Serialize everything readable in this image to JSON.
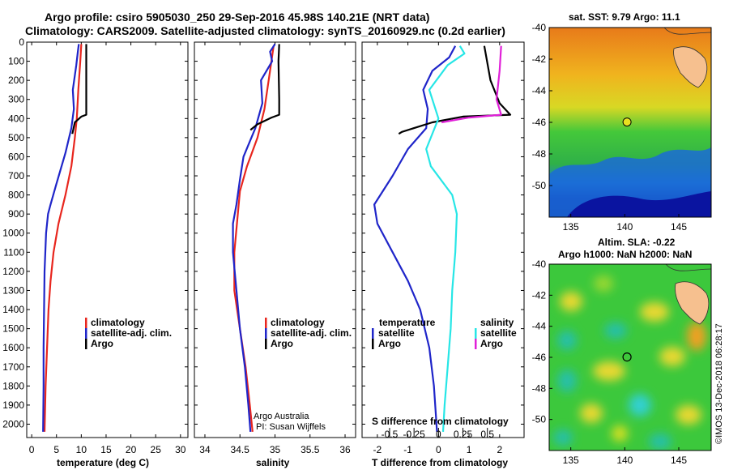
{
  "title": {
    "line1": "Argo profile: csiro 5905030_250 29-Sep-2016 45.98S 140.21E (NRT data)",
    "line2": "Climatology: CARS2009. Satellite-adjusted climatology: synTS_20160929.nc (0.2d earlier)"
  },
  "colors": {
    "climatology": "#e8261e",
    "satellite": "#1f25c9",
    "argo": "#000000",
    "sal_satellite": "#27e6e6",
    "sal_argo": "#e020d8"
  },
  "credit": {
    "line1": "Argo Australia",
    "line2": "PI: Susan Wijffels"
  },
  "watermark": "©IMOS 13-Dec-2018 06:28:17",
  "chart_data": [
    {
      "type": "line",
      "xlabel": "temperature (deg C)",
      "xlim": [
        -1,
        31.5
      ],
      "ylim": [
        2070,
        0
      ],
      "xticks": [
        0,
        5,
        10,
        15,
        20,
        25,
        30
      ],
      "yticks": [
        0,
        100,
        200,
        300,
        400,
        500,
        600,
        700,
        800,
        900,
        1000,
        1100,
        1200,
        1300,
        1400,
        1500,
        1600,
        1700,
        1800,
        1900,
        2000
      ],
      "ytick_labels": [
        "0",
        "100",
        "200",
        "300",
        "400",
        "500",
        "600",
        "700",
        "800",
        "900",
        "1000",
        "1100",
        "1200",
        "1300",
        "1400",
        "1500",
        "1600",
        "1700",
        "1800",
        "1900",
        "2000"
      ],
      "legend": [
        "climatology",
        "satellite-adj. clim.",
        "Argo"
      ],
      "legend_position": "lower-right",
      "series": [
        {
          "name": "climatology",
          "color": "#e8261e",
          "points": [
            [
              10.0,
              10
            ],
            [
              9.8,
              100
            ],
            [
              9.4,
              250
            ],
            [
              9.1,
              400
            ],
            [
              8.7,
              500
            ],
            [
              8.0,
              650
            ],
            [
              6.8,
              800
            ],
            [
              5.4,
              950
            ],
            [
              4.4,
              1100
            ],
            [
              3.8,
              1250
            ],
            [
              3.4,
              1400
            ],
            [
              3.1,
              1600
            ],
            [
              2.8,
              1800
            ],
            [
              2.6,
              2040
            ]
          ]
        },
        {
          "name": "satellite-adj. clim.",
          "color": "#1f25c9",
          "points": [
            [
              9.5,
              10
            ],
            [
              9.3,
              50
            ],
            [
              9.0,
              120
            ],
            [
              8.3,
              250
            ],
            [
              8.5,
              350
            ],
            [
              8.0,
              450
            ],
            [
              6.8,
              580
            ],
            [
              4.9,
              750
            ],
            [
              3.8,
              850
            ],
            [
              3.3,
              900
            ],
            [
              2.9,
              1000
            ],
            [
              2.6,
              1200
            ],
            [
              2.5,
              1400
            ],
            [
              2.4,
              1600
            ],
            [
              2.4,
              1800
            ],
            [
              2.3,
              2040
            ]
          ]
        },
        {
          "name": "Argo",
          "color": "#000000",
          "points": [
            [
              11.0,
              10
            ],
            [
              11.0,
              380
            ],
            [
              10.0,
              390
            ],
            [
              8.7,
              420
            ],
            [
              8.2,
              480
            ]
          ]
        }
      ]
    },
    {
      "type": "line",
      "xlabel": "salinity",
      "xlim": [
        33.85,
        36.15
      ],
      "ylim": [
        2070,
        0
      ],
      "xticks": [
        34,
        34.5,
        35,
        35.5,
        36
      ],
      "legend": [
        "climatology",
        "satellite-adj. clim.",
        "Argo"
      ],
      "legend_position": "lower-right",
      "series": [
        {
          "name": "climatology",
          "color": "#e8261e",
          "points": [
            [
              34.98,
              20
            ],
            [
              34.93,
              150
            ],
            [
              34.85,
              350
            ],
            [
              34.75,
              500
            ],
            [
              34.6,
              650
            ],
            [
              34.5,
              780
            ],
            [
              34.47,
              900
            ],
            [
              34.42,
              1100
            ],
            [
              34.42,
              1300
            ],
            [
              34.5,
              1500
            ],
            [
              34.58,
              1700
            ],
            [
              34.64,
              1900
            ],
            [
              34.68,
              2040
            ]
          ]
        },
        {
          "name": "satellite-adj. clim.",
          "color": "#1f25c9",
          "points": [
            [
              35.0,
              10
            ],
            [
              34.93,
              50
            ],
            [
              34.96,
              100
            ],
            [
              34.8,
              200
            ],
            [
              34.82,
              320
            ],
            [
              34.72,
              450
            ],
            [
              34.55,
              600
            ],
            [
              34.5,
              720
            ],
            [
              34.45,
              850
            ],
            [
              34.4,
              950
            ],
            [
              34.4,
              1100
            ],
            [
              34.45,
              1300
            ],
            [
              34.5,
              1500
            ],
            [
              34.57,
              1700
            ],
            [
              34.62,
              1900
            ],
            [
              34.65,
              2040
            ]
          ]
        },
        {
          "name": "Argo",
          "color": "#000000",
          "points": [
            [
              35.06,
              10
            ],
            [
              35.05,
              100
            ],
            [
              35.06,
              300
            ],
            [
              35.06,
              380
            ],
            [
              34.95,
              395
            ],
            [
              34.75,
              430
            ],
            [
              34.65,
              460
            ]
          ]
        }
      ]
    },
    {
      "type": "line",
      "title": "",
      "xlabel": "T difference from climatology",
      "xlabel_top": "S difference from climatology",
      "xlim": [
        -2.5,
        2.8
      ],
      "ylim": [
        2070,
        0
      ],
      "xticks": [
        -2,
        -1,
        0,
        1,
        2
      ],
      "xticks_top": [
        "-0.5",
        "-0.25",
        "0",
        "0.25",
        "0.5"
      ],
      "legend_temperature": {
        "heading": "temperature",
        "items": [
          "satellite",
          "Argo"
        ]
      },
      "legend_salinity": {
        "heading": "salinity",
        "items": [
          "satellite",
          "Argo"
        ]
      },
      "series": [
        {
          "name": "temperature satellite",
          "color": "#1f25c9",
          "points": [
            [
              0.55,
              20
            ],
            [
              0.35,
              80
            ],
            [
              -0.2,
              150
            ],
            [
              -0.5,
              250
            ],
            [
              -0.35,
              350
            ],
            [
              -0.4,
              450
            ],
            [
              -1.0,
              560
            ],
            [
              -1.5,
              700
            ],
            [
              -2.1,
              850
            ],
            [
              -2.0,
              950
            ],
            [
              -1.5,
              1100
            ],
            [
              -1.0,
              1250
            ],
            [
              -0.6,
              1400
            ],
            [
              -0.3,
              1600
            ],
            [
              -0.15,
              1800
            ],
            [
              -0.05,
              2040
            ]
          ]
        },
        {
          "name": "temperature Argo",
          "color": "#000000",
          "points": [
            [
              1.5,
              20
            ],
            [
              1.7,
              200
            ],
            [
              2.0,
              320
            ],
            [
              2.35,
              380
            ],
            [
              0.8,
              390
            ],
            [
              -0.2,
              420
            ],
            [
              -1.2,
              470
            ],
            [
              -1.3,
              480
            ]
          ]
        },
        {
          "name": "salinity satellite",
          "color": "#27e6e6",
          "points": [
            [
              0.7,
              20
            ],
            [
              0.85,
              60
            ],
            [
              0.3,
              120
            ],
            [
              -0.3,
              250
            ],
            [
              0.0,
              400
            ],
            [
              -0.4,
              560
            ],
            [
              -0.25,
              650
            ],
            [
              0.45,
              800
            ],
            [
              0.6,
              900
            ],
            [
              0.55,
              1100
            ],
            [
              0.45,
              1300
            ],
            [
              0.4,
              1500
            ],
            [
              0.3,
              1700
            ],
            [
              0.2,
              1900
            ],
            [
              0.15,
              2040
            ]
          ]
        },
        {
          "name": "salinity Argo",
          "color": "#e020d8",
          "points": [
            [
              2.05,
              20
            ],
            [
              2.0,
              150
            ],
            [
              1.9,
              300
            ],
            [
              2.05,
              380
            ],
            [
              1.0,
              395
            ],
            [
              0.1,
              420
            ]
          ]
        }
      ]
    },
    {
      "type": "heatmap",
      "title": "sat. SST: 9.79 Argo: 11.1",
      "xlim": [
        133,
        148
      ],
      "ylim": [
        -52,
        -40
      ],
      "xticks": [
        135,
        140,
        145
      ],
      "yticks": [
        -40,
        -42,
        -44,
        -46,
        -48,
        -50
      ],
      "float_position": [
        140.21,
        -45.98
      ]
    },
    {
      "type": "heatmap",
      "title": "Altim. SLA: -0.22",
      "subtitle": "Argo h1000: NaN h2000: NaN",
      "xlim": [
        133,
        148
      ],
      "ylim": [
        -52,
        -40
      ],
      "xticks": [
        135,
        140,
        145
      ],
      "yticks": [
        -40,
        -42,
        -44,
        -46,
        -48,
        -50
      ],
      "float_position": [
        140.21,
        -45.98
      ]
    }
  ]
}
